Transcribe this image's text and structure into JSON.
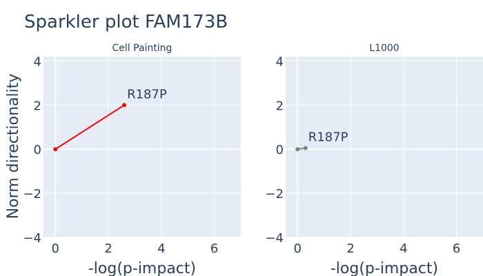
{
  "title": "Sparkler plot FAM173B",
  "ylabel": "Norm directionality",
  "chart_data": [
    {
      "type": "line",
      "subtitle": "Cell Painting",
      "xlabel": "-log(p-impact)",
      "xlim": [
        -0.45,
        7
      ],
      "ylim": [
        -4,
        4.2
      ],
      "xticks": [
        0,
        2,
        4,
        6
      ],
      "yticks": [
        4,
        2,
        0,
        -2,
        -4
      ],
      "tick_labels_x": [
        "0",
        "2",
        "4",
        "6"
      ],
      "tick_labels_y": [
        "4",
        "2",
        "0",
        "−2",
        "−4"
      ],
      "color": "#ff0000",
      "x": [
        0,
        2.6
      ],
      "y": [
        0,
        2
      ],
      "point_label": "R187P",
      "grid": true
    },
    {
      "type": "line",
      "subtitle": "L1000",
      "xlabel": "-log(p-impact)",
      "xlim": [
        -0.45,
        7
      ],
      "ylim": [
        -4,
        4.2
      ],
      "xticks": [
        0,
        2,
        4,
        6
      ],
      "yticks": [
        4,
        2,
        0,
        -2,
        -4
      ],
      "tick_labels_x": [
        "0",
        "2",
        "4",
        "6"
      ],
      "tick_labels_y": [
        "4",
        "2",
        "0",
        "−2",
        "−4"
      ],
      "color": "#808080",
      "x": [
        0,
        0.3
      ],
      "y": [
        0,
        0.05
      ],
      "point_label": "R187P",
      "grid": true
    }
  ]
}
